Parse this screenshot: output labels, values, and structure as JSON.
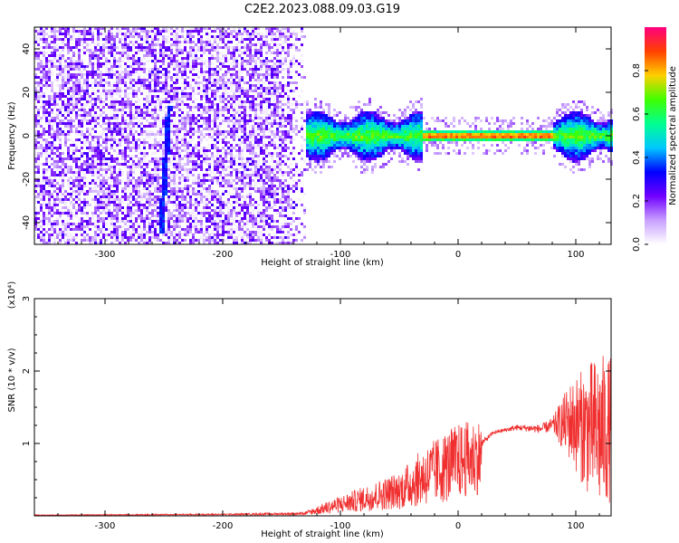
{
  "title": "C2E2.2023.088.09.03.G19",
  "chart_data": [
    {
      "type": "heatmap",
      "xlabel": "Height of straight line (km)",
      "ylabel": "Frequency (Hz)",
      "xlim": [
        -360,
        130
      ],
      "ylim": [
        -50,
        50
      ],
      "x_ticks": [
        "-300",
        "-200",
        "-100",
        "0",
        "100"
      ],
      "y_ticks": [
        "40",
        "20",
        "0",
        "-20",
        "-40"
      ],
      "colorbar": {
        "label": "Normalized spectral amplitude",
        "range": [
          0,
          1
        ],
        "ticks": [
          "0.0",
          "0.2",
          "0.4",
          "0.6",
          "0.8"
        ],
        "colors": [
          "#ffffff",
          "#c8a0ff",
          "#7000ff",
          "#0000ff",
          "#00c8ff",
          "#00ff90",
          "#40ff00",
          "#ffd000",
          "#ff4000",
          "#ff0080"
        ]
      },
      "regions": [
        {
          "x": [
            -360,
            -130
          ],
          "freq": [
            -50,
            50
          ],
          "amplitude": 0.12,
          "description_level": "low"
        },
        {
          "x": [
            -130,
            -30
          ],
          "freq": [
            -12,
            10
          ],
          "amplitude": 0.35
        },
        {
          "x": [
            -30,
            80
          ],
          "freq": [
            -3,
            3
          ],
          "amplitude": 0.8
        },
        {
          "x": [
            80,
            130
          ],
          "freq": [
            -12,
            10
          ],
          "amplitude": 0.35
        }
      ],
      "streak": {
        "x": [
          -255,
          -245
        ],
        "freq": [
          -45,
          15
        ]
      }
    },
    {
      "type": "line",
      "xlabel": "Height of straight line (km)",
      "ylabel": "SNR (10 * v/v)",
      "scale_label": "(x10⁴)",
      "xlim": [
        -360,
        130
      ],
      "ylim": [
        0,
        3
      ],
      "x_ticks": [
        "-300",
        "-200",
        "-100",
        "0",
        "100"
      ],
      "y_ticks": [
        "1",
        "2",
        "3"
      ],
      "color": "#f03030",
      "envelope": {
        "x": [
          -360,
          -200,
          -130,
          -110,
          -80,
          -50,
          -30,
          -10,
          0,
          10,
          20,
          30,
          50,
          70,
          80,
          95,
          110,
          120,
          130
        ],
        "mid": [
          0.01,
          0.02,
          0.03,
          0.1,
          0.2,
          0.3,
          0.45,
          0.6,
          0.75,
          0.9,
          1.0,
          1.15,
          1.22,
          1.2,
          1.25,
          1.3,
          1.2,
          1.15,
          1.2
        ],
        "amp": [
          0.005,
          0.01,
          0.02,
          0.08,
          0.15,
          0.22,
          0.35,
          0.4,
          0.3,
          0.15,
          0.05,
          0.02,
          0.04,
          0.06,
          0.1,
          0.55,
          0.9,
          1.1,
          1.0
        ]
      }
    }
  ]
}
